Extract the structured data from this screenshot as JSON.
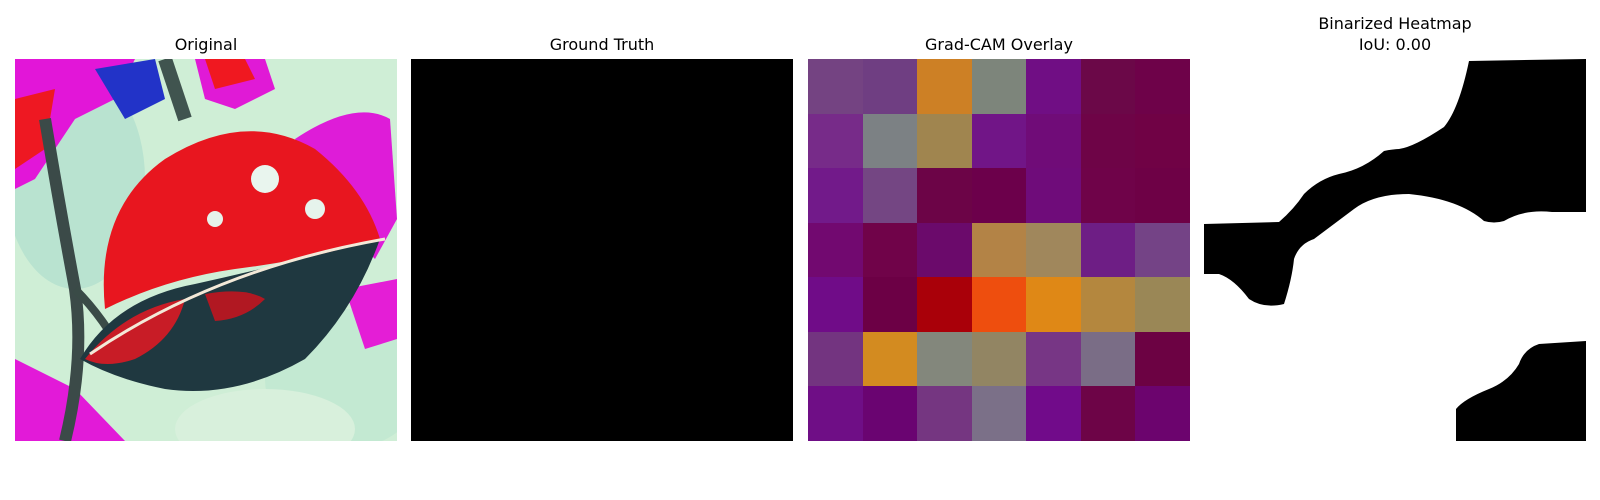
{
  "panels": [
    {
      "title": "Original"
    },
    {
      "title": "Ground Truth"
    },
    {
      "title": "Grad-CAM Overlay"
    },
    {
      "title": "Binarized Heatmap\nIoU: 0.00"
    }
  ],
  "colors": {
    "ground_truth_fill": "#000000",
    "binary_foreground": "#000000",
    "binary_background": "#ffffff"
  },
  "gradcam_cells": [
    [
      "#744382",
      "#6f3e82",
      "#cd8025",
      "#7d857b",
      "#700e84",
      "#6b0848",
      "#6e0249"
    ],
    [
      "#772b89",
      "#7c8184",
      "#a0854f",
      "#711587",
      "#700c78",
      "#6e0447",
      "#700245"
    ],
    [
      "#721a8a",
      "#744683",
      "#6c0447",
      "#6c004b",
      "#6f0c7a",
      "#6f0349",
      "#6e0146"
    ],
    [
      "#720970",
      "#700349",
      "#6b0a6b",
      "#b38346",
      "#a0875c",
      "#6e1e85",
      "#744386"
    ],
    [
      "#700c88",
      "#6c0045",
      "#a90009",
      "#ee4e0e",
      "#df8816",
      "#b4873e",
      "#9a8756"
    ],
    [
      "#733480",
      "#d38b20",
      "#83877c",
      "#928563",
      "#773685",
      "#7a6d86",
      "#6c0243"
    ],
    [
      "#6f0e86",
      "#6a0471",
      "#753681",
      "#7b7088",
      "#710b8a",
      "#6d0447",
      "#6c046e"
    ]
  ]
}
